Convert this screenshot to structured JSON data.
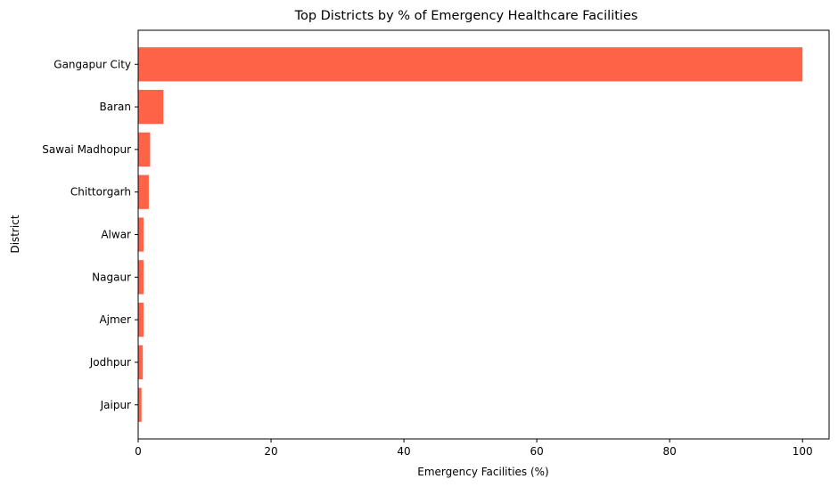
{
  "chart_data": {
    "type": "bar",
    "orientation": "horizontal",
    "title": "Top Districts by % of Emergency Healthcare Facilities",
    "xlabel": "Emergency Facilities (%)",
    "ylabel": "District",
    "xlim": [
      0,
      104
    ],
    "xticks": [
      0,
      20,
      40,
      60,
      80,
      100
    ],
    "categories": [
      "Gangapur City",
      "Baran",
      "Sawai Madhopur",
      "Chittorgarh",
      "Alwar",
      "Nagaur",
      "Ajmer",
      "Jodhpur",
      "Jaipur"
    ],
    "values": [
      100,
      3.8,
      1.8,
      1.6,
      0.8,
      0.8,
      0.8,
      0.7,
      0.5
    ],
    "bar_color": "#ff6347",
    "grid": false,
    "legend": "none"
  }
}
